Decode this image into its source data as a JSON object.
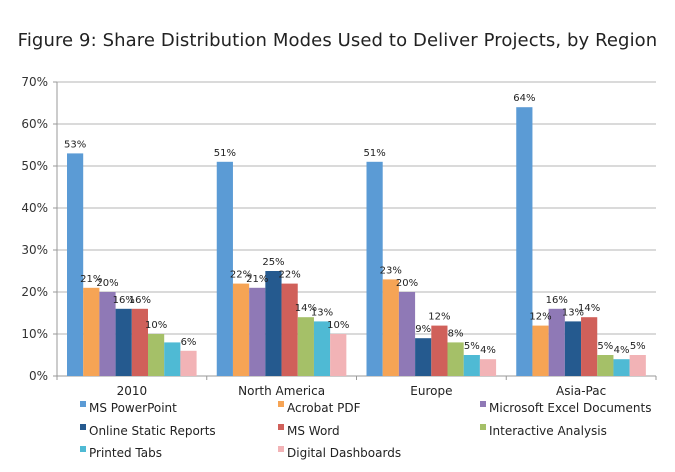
{
  "chart_data": {
    "type": "bar",
    "title": "Figure 9: Share Distribution Modes Used to Deliver Projects, by Region",
    "xlabel": "",
    "ylabel": "",
    "ylim": [
      0,
      70
    ],
    "yticks": [
      0,
      10,
      20,
      30,
      40,
      50,
      60,
      70
    ],
    "ytick_labels": [
      "0%",
      "10%",
      "20%",
      "30%",
      "40%",
      "50%",
      "60%",
      "70%"
    ],
    "grid": true,
    "legend_position": "bottom",
    "categories": [
      "2010",
      "North America",
      "Europe",
      "Asia-Pac"
    ],
    "series": [
      {
        "name": "MS PowerPoint",
        "color": "#5b9bd5",
        "values": [
          53,
          51,
          51,
          64
        ],
        "labels": [
          "53%",
          "51%",
          "51%",
          "64%"
        ]
      },
      {
        "name": "Acrobat PDF",
        "color": "#f6a455",
        "values": [
          21,
          22,
          23,
          12
        ],
        "labels": [
          "21%",
          "22%",
          "23%",
          "12%"
        ]
      },
      {
        "name": "Microsoft Excel Documents",
        "color": "#8f79b6",
        "values": [
          20,
          21,
          20,
          16
        ],
        "labels": [
          "20%",
          "21%",
          "20%",
          "16%"
        ]
      },
      {
        "name": "Online Static Reports",
        "color": "#255a8f",
        "values": [
          16,
          25,
          9,
          13
        ],
        "labels": [
          "16%",
          "25%",
          "9%",
          "13%"
        ]
      },
      {
        "name": "MS Word",
        "color": "#d0605a",
        "values": [
          16,
          22,
          12,
          14
        ],
        "labels": [
          "16%",
          "22%",
          "12%",
          "14%"
        ]
      },
      {
        "name": "Interactive Analysis",
        "color": "#a5c068",
        "values": [
          10,
          14,
          8,
          5
        ],
        "labels": [
          "10%",
          "14%",
          "8%",
          "5%"
        ]
      },
      {
        "name": "Printed Tabs",
        "color": "#4fbad4",
        "values": [
          8,
          13,
          5,
          4
        ],
        "labels": [
          "",
          "13%",
          "5%",
          "4%"
        ]
      },
      {
        "name": "Digital Dashboards",
        "color": "#f2b3b6",
        "values": [
          6,
          10,
          4,
          5
        ],
        "labels": [
          "6%",
          "10%",
          "4%",
          "5%"
        ]
      }
    ]
  }
}
